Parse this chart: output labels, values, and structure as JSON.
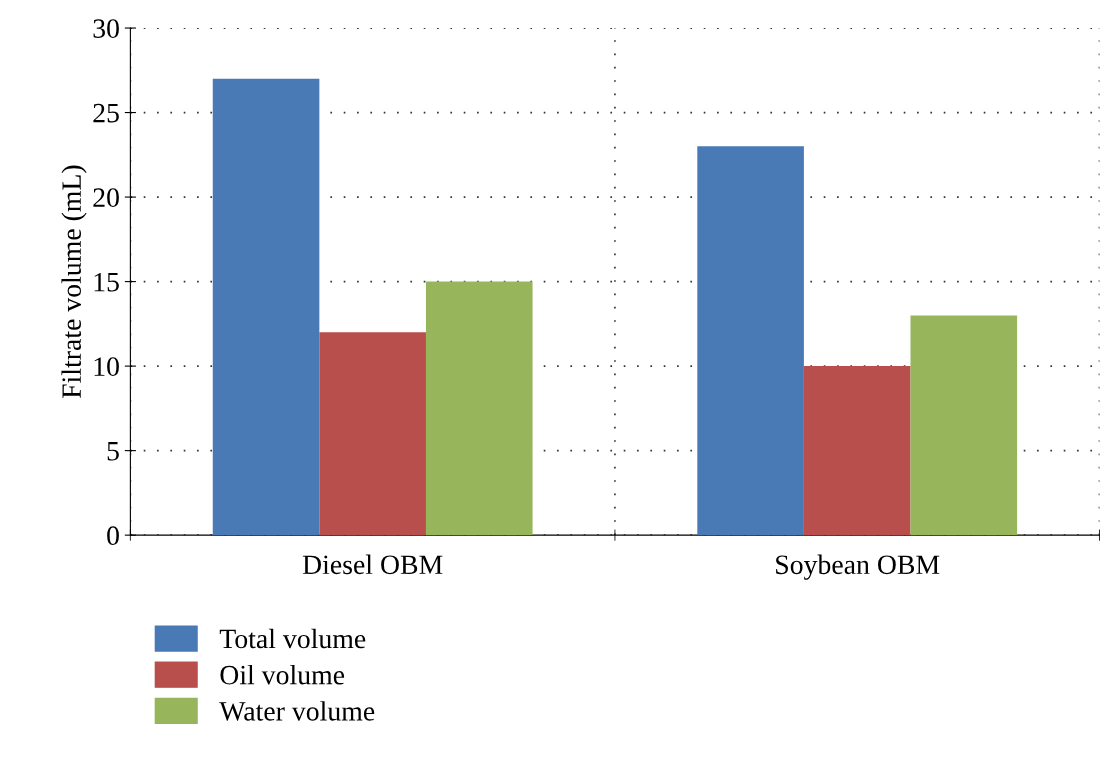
{
  "chart_data": {
    "type": "bar",
    "ylabel": "Filtrate volume (mL)",
    "categories": [
      "Diesel OBM",
      "Soybean OBM"
    ],
    "series": [
      {
        "name": "Total volume",
        "color": "#4a7ab5",
        "values": [
          27,
          23
        ]
      },
      {
        "name": "Oil volume",
        "color": "#b84f4c",
        "values": [
          12,
          10
        ]
      },
      {
        "name": "Water volume",
        "color": "#97b55a",
        "values": [
          15,
          13
        ]
      }
    ],
    "ylim": [
      0,
      30
    ],
    "yticks": [
      0,
      5,
      10,
      15,
      20,
      25,
      30
    ],
    "grid": true,
    "legend": "bottom left"
  }
}
